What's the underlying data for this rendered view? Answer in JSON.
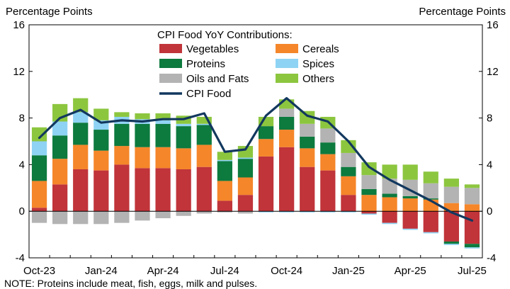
{
  "chart_data": {
    "type": "bar",
    "subtype": "stacked bar with line overlay",
    "title": "CPI Food YoY Contributions:",
    "y_unit_left": "Percentage Points",
    "y_unit_right": "Percentage Points",
    "ylim": [
      -4,
      16
    ],
    "yticks": [
      -4,
      0,
      4,
      8,
      12,
      16
    ],
    "xtick_labels": [
      {
        "index": 0,
        "label": "Oct-23"
      },
      {
        "index": 3,
        "label": "Jan-24"
      },
      {
        "index": 6,
        "label": "Apr-24"
      },
      {
        "index": 9,
        "label": "Jul-24"
      },
      {
        "index": 12,
        "label": "Oct-24"
      },
      {
        "index": 15,
        "label": "Jan-25"
      },
      {
        "index": 18,
        "label": "Apr-25"
      },
      {
        "index": 21,
        "label": "Jul-25"
      }
    ],
    "categories": [
      "Oct-23",
      "Nov-23",
      "Dec-23",
      "Jan-24",
      "Feb-24",
      "Mar-24",
      "Apr-24",
      "May-24",
      "Jun-24",
      "Jul-24",
      "Aug-24",
      "Sep-24",
      "Oct-24",
      "Nov-24",
      "Dec-24",
      "Jan-25",
      "Feb-25",
      "Mar-25",
      "Apr-25",
      "May-25",
      "Jun-25",
      "Jul-25"
    ],
    "series": [
      {
        "name": "Vegetables",
        "kind": "bar",
        "color": "#c0343a",
        "values": [
          0.3,
          2.3,
          3.6,
          3.5,
          4.0,
          3.7,
          3.7,
          3.6,
          3.8,
          0.9,
          1.4,
          4.7,
          5.5,
          3.8,
          3.5,
          1.4,
          -0.2,
          -1.0,
          -1.5,
          -1.8,
          -2.6,
          -2.8
        ]
      },
      {
        "name": "Cereals",
        "kind": "bar",
        "color": "#f5862a",
        "values": [
          2.3,
          2.2,
          2.1,
          1.7,
          1.6,
          1.8,
          1.8,
          1.8,
          1.9,
          1.7,
          1.5,
          1.5,
          1.5,
          1.6,
          1.4,
          1.6,
          1.4,
          1.2,
          1.1,
          1.0,
          0.7,
          0.6
        ]
      },
      {
        "name": "Proteins",
        "kind": "bar",
        "color": "#0d7a3e",
        "values": [
          2.2,
          2.0,
          1.9,
          1.8,
          1.9,
          2.0,
          2.0,
          1.9,
          1.7,
          1.7,
          1.6,
          1.1,
          1.1,
          1.0,
          1.0,
          0.8,
          0.5,
          0.3,
          0.2,
          0.1,
          -0.2,
          -0.3
        ]
      },
      {
        "name": "Spices",
        "kind": "bar",
        "color": "#8fd3f4",
        "values": [
          1.2,
          1.2,
          0.9,
          0.8,
          0.6,
          0.4,
          0.3,
          0.2,
          0.1,
          0.1,
          0.1,
          -0.1,
          -0.1,
          -0.1,
          -0.1,
          -0.1,
          -0.1,
          -0.1,
          -0.1,
          -0.1,
          -0.1,
          -0.1
        ]
      },
      {
        "name": "Oils and Fats",
        "kind": "bar",
        "color": "#b3b3b3",
        "values": [
          -1.0,
          -1.1,
          -1.1,
          -1.1,
          -1.0,
          -0.8,
          -0.6,
          -0.4,
          -0.2,
          -0.1,
          -0.2,
          0.0,
          0.7,
          1.1,
          1.2,
          1.2,
          1.2,
          1.3,
          1.4,
          1.3,
          1.4,
          1.4
        ]
      },
      {
        "name": "Others",
        "kind": "bar",
        "color": "#8cc63f",
        "values": [
          1.2,
          1.5,
          1.2,
          1.0,
          0.4,
          0.5,
          0.6,
          0.7,
          0.6,
          0.7,
          1.0,
          0.8,
          0.8,
          1.1,
          1.0,
          1.1,
          1.1,
          1.2,
          1.3,
          1.0,
          0.7,
          0.3
        ]
      },
      {
        "name": "CPI Food",
        "kind": "line",
        "color": "#12385e",
        "values": [
          6.3,
          8.0,
          8.7,
          7.6,
          7.8,
          7.7,
          7.9,
          7.9,
          8.4,
          5.1,
          5.3,
          8.2,
          9.7,
          8.2,
          7.7,
          6.0,
          3.8,
          2.7,
          1.8,
          0.9,
          -0.1,
          -0.8
        ]
      }
    ],
    "legend_position": "top-center",
    "grid": false
  },
  "header": {
    "unit_left": "Percentage Points",
    "unit_right": "Percentage Points"
  },
  "footer": {
    "note": "NOTE: Proteins include meat, fish, eggs, milk and pulses."
  }
}
